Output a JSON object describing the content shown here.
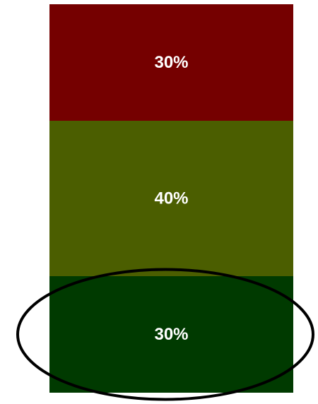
{
  "chart_data": {
    "type": "bar",
    "stacked": true,
    "orientation": "vertical",
    "categories": [
      ""
    ],
    "series": [
      {
        "value": 30,
        "label": "30%",
        "color": "#750000"
      },
      {
        "value": 40,
        "label": "40%",
        "color": "#4b5e00"
      },
      {
        "value": 30,
        "label": "30%",
        "color": "#003a00"
      }
    ],
    "title": "",
    "xlabel": "",
    "ylabel": "",
    "grid": false,
    "legend": "none",
    "highlight": {
      "shape": "ellipse",
      "segment_index": 2,
      "color": "#000000"
    }
  }
}
